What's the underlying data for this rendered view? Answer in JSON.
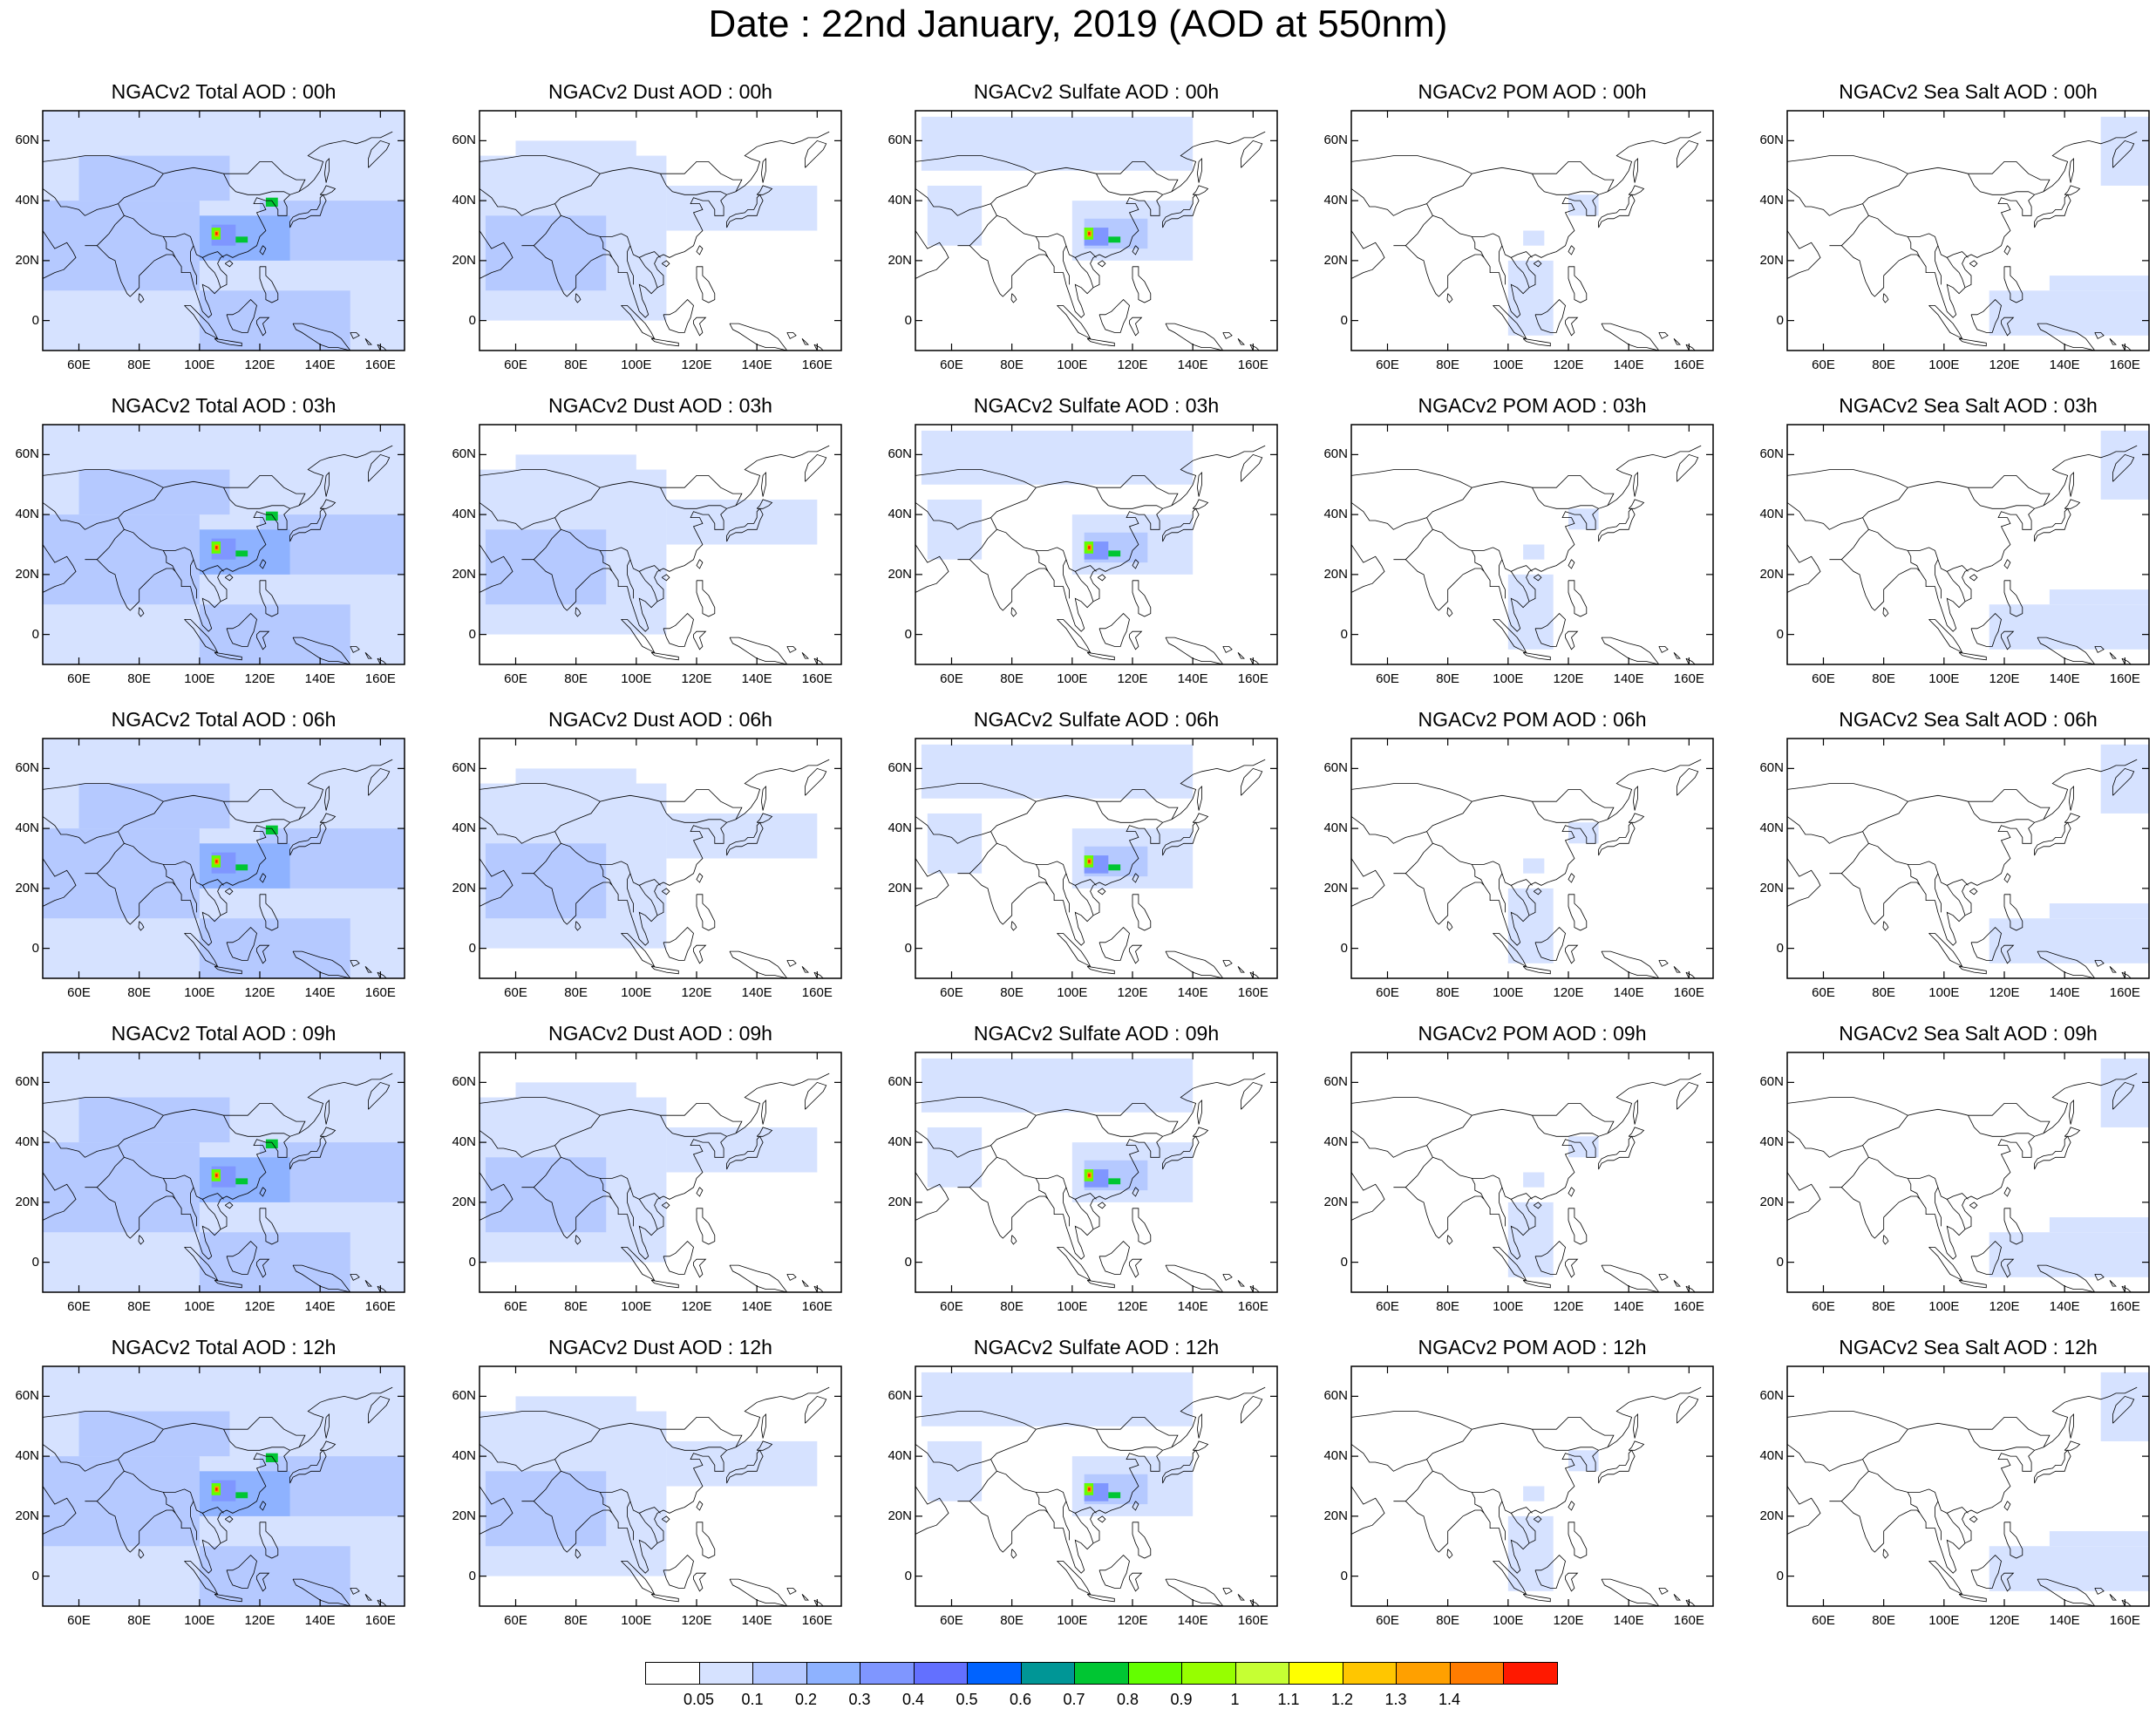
{
  "title": "Date : 22nd January, 2019 (AOD at 550nm)",
  "panels": [
    [
      "NGACv2 Total AOD : 00h",
      "NGACv2 Dust AOD : 00h",
      "NGACv2 Sulfate AOD : 00h",
      "NGACv2 POM AOD : 00h",
      "NGACv2 Sea Salt AOD : 00h"
    ],
    [
      "NGACv2 Total AOD : 03h",
      "NGACv2 Dust AOD : 03h",
      "NGACv2 Sulfate AOD : 03h",
      "NGACv2 POM AOD : 03h",
      "NGACv2 Sea Salt AOD : 03h"
    ],
    [
      "NGACv2 Total AOD : 06h",
      "NGACv2 Dust AOD : 06h",
      "NGACv2 Sulfate AOD : 06h",
      "NGACv2 POM AOD : 06h",
      "NGACv2 Sea Salt AOD : 06h"
    ],
    [
      "NGACv2 Total AOD : 09h",
      "NGACv2 Dust AOD : 09h",
      "NGACv2 Sulfate AOD : 09h",
      "NGACv2 POM AOD : 09h",
      "NGACv2 Sea Salt  AOD : 09h"
    ],
    [
      "NGACv2 Total AOD  : 12h",
      "NGACv2 Dust AOD : 12h",
      "NGACv2 Sulfate AOD : 12h",
      "NGACv2 POM  AOD : 12h",
      "NGACv2 Sea Salt  AOD : 12h"
    ]
  ],
  "lat_ticks": [
    "60N",
    "40N",
    "20N",
    "0"
  ],
  "lon_ticks": [
    "60E",
    "80E",
    "100E",
    "120E",
    "140E",
    "160E"
  ],
  "colorbar": {
    "labels": [
      "0.05",
      "0.1",
      "0.2",
      "0.3",
      "0.4",
      "0.5",
      "0.6",
      "0.7",
      "0.8",
      "0.9",
      "1",
      "1.1",
      "1.2",
      "1.3",
      "1.4"
    ],
    "colors": [
      "#ffffff",
      "#d6e2ff",
      "#b5c9ff",
      "#8eb2ff",
      "#7f96ff",
      "#6370ff",
      "#0063ff",
      "#009696",
      "#00c633",
      "#63ff00",
      "#96ff00",
      "#c6ff33",
      "#ffff00",
      "#ffc600",
      "#ffa000",
      "#ff7c00",
      "#ff1900"
    ]
  },
  "map_data": {
    "lon_range": [
      48,
      168
    ],
    "lat_range": [
      -10,
      70
    ],
    "coast_color": "#000000",
    "fill_colors": {
      "light": "#d6e2ff",
      "mid": "#b5c9ff",
      "med": "#8eb2ff",
      "strong": "#7f96ff"
    }
  }
}
